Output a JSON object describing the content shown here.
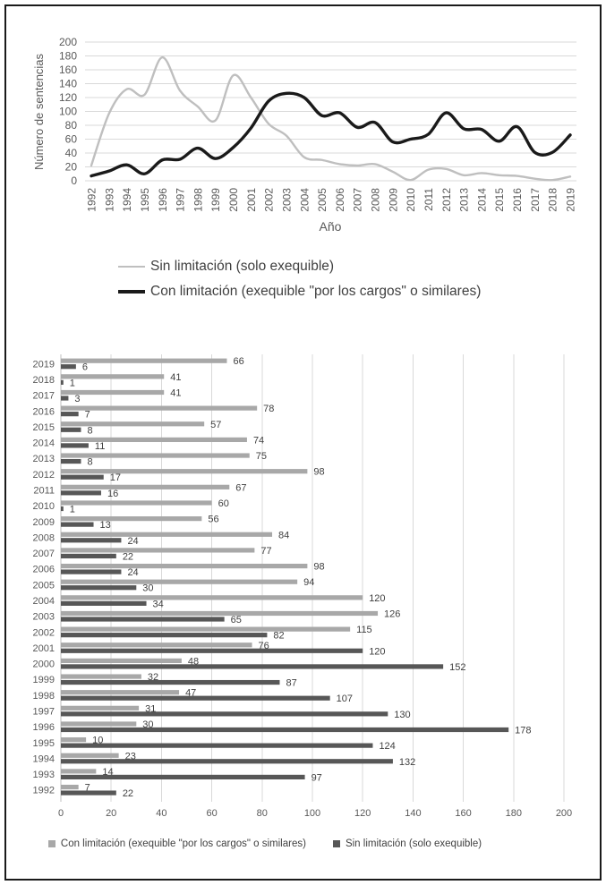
{
  "figure": {
    "background": "#ffffff",
    "frame_color": "#1a1a1a"
  },
  "colors": {
    "gridline": "#d9d9d9",
    "axis_line": "#bfbfbf",
    "tick_text": "#595959",
    "data_label_text": "#3f3f3f",
    "legend_text": "#404040"
  },
  "chart_data": [
    {
      "type": "line",
      "line_style": "smooth",
      "title": "",
      "xlabel": "Año",
      "ylabel": "Número de sentencias",
      "ylim": [
        0,
        200
      ],
      "ytick_step": 20,
      "grid": true,
      "legend_position": "below-left",
      "x": [
        1992,
        1993,
        1994,
        1995,
        1996,
        1997,
        1998,
        1999,
        2000,
        2001,
        2002,
        2003,
        2004,
        2005,
        2006,
        2007,
        2008,
        2009,
        2010,
        2011,
        2012,
        2013,
        2014,
        2015,
        2016,
        2017,
        2018,
        2019
      ],
      "series": [
        {
          "name": "Sin limitación (solo exequible)",
          "color": "#bfbfbf",
          "stroke_width": 2.4,
          "values": [
            22,
            97,
            132,
            124,
            178,
            130,
            107,
            87,
            152,
            120,
            82,
            65,
            34,
            30,
            24,
            22,
            24,
            13,
            1,
            16,
            17,
            8,
            11,
            8,
            7,
            3,
            1,
            6
          ]
        },
        {
          "name": "Con limitación (exequible \"por los cargos\" o similares)",
          "color": "#1a1a1a",
          "stroke_width": 3.4,
          "values": [
            7,
            14,
            23,
            10,
            30,
            31,
            47,
            32,
            48,
            76,
            115,
            126,
            120,
            94,
            98,
            77,
            84,
            56,
            60,
            67,
            98,
            75,
            74,
            57,
            78,
            41,
            41,
            66
          ]
        }
      ]
    },
    {
      "type": "bar",
      "orientation": "horizontal",
      "title": "",
      "xlim": [
        0,
        200
      ],
      "xtick_step": 20,
      "grid": true,
      "data_labels": true,
      "legend_position": "bottom-center",
      "categories": [
        2019,
        2018,
        2017,
        2016,
        2015,
        2014,
        2013,
        2012,
        2011,
        2010,
        2009,
        2008,
        2007,
        2006,
        2005,
        2004,
        2003,
        2002,
        2001,
        2000,
        1999,
        1998,
        1997,
        1996,
        1995,
        1994,
        1993,
        1992
      ],
      "series": [
        {
          "name": "Con limitación (exequible \"por los cargos\" o similares)",
          "color": "#a8a8a8",
          "values": [
            66,
            41,
            41,
            78,
            57,
            74,
            75,
            98,
            67,
            60,
            56,
            84,
            77,
            98,
            94,
            120,
            126,
            115,
            76,
            48,
            32,
            47,
            31,
            30,
            10,
            23,
            14,
            7
          ]
        },
        {
          "name": "Sin limitación (solo exequible)",
          "color": "#575757",
          "values": [
            6,
            1,
            3,
            7,
            8,
            11,
            8,
            17,
            16,
            1,
            13,
            24,
            22,
            24,
            30,
            34,
            65,
            82,
            120,
            152,
            87,
            107,
            130,
            178,
            124,
            132,
            97,
            22
          ]
        }
      ]
    }
  ]
}
